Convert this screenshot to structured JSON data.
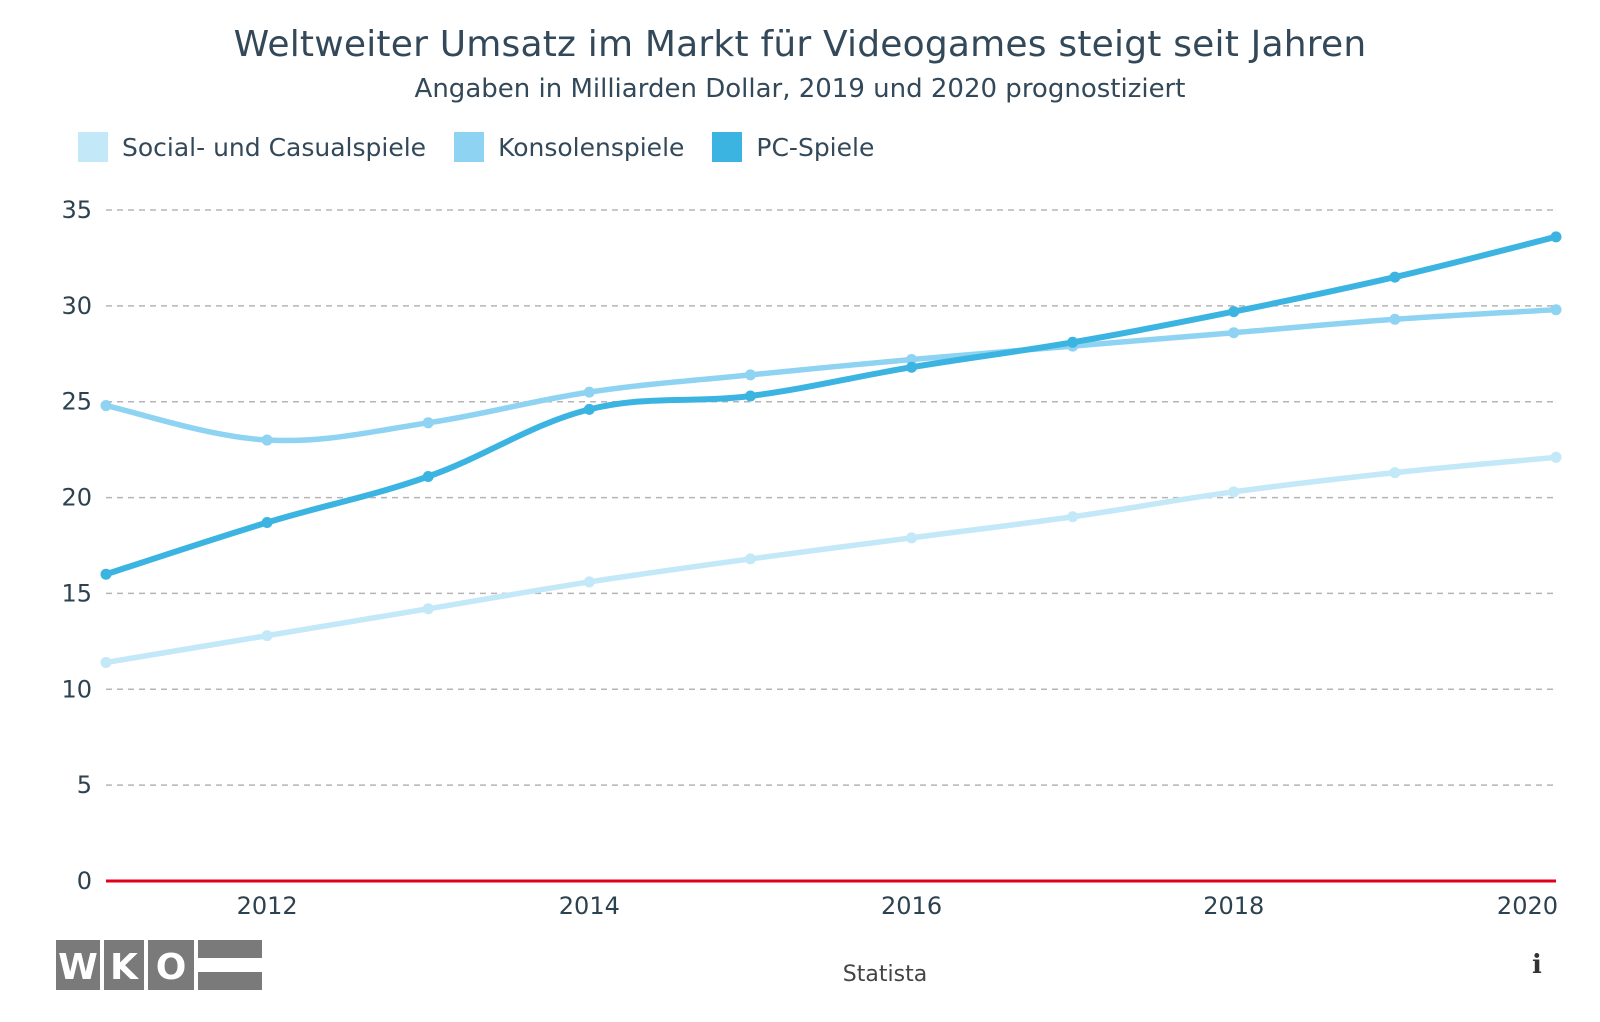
{
  "title": "Weltweiter Umsatz im Markt für Videogames steigt seit Jahren",
  "subtitle": "Angaben in Milliarden Dollar, 2019 und 2020 prognostiziert",
  "source": "Statista",
  "info_icon": "i",
  "logo_text": [
    "W",
    "K",
    "O"
  ],
  "colors": {
    "social": "#c3e8f8",
    "konsole": "#8fd3f2",
    "pc": "#3cb4e2",
    "grid": "#b5b5b5",
    "baseline": "#e0001b",
    "axis_text": "#2d4250"
  },
  "chart_data": {
    "type": "line",
    "x": [
      2011,
      2012,
      2013,
      2014,
      2015,
      2016,
      2017,
      2018,
      2019,
      2020
    ],
    "xticks": [
      "2012",
      "2014",
      "2016",
      "2018",
      "2020"
    ],
    "yticks": [
      "0",
      "5",
      "10",
      "15",
      "20",
      "25",
      "30",
      "35"
    ],
    "ylim": [
      0,
      35
    ],
    "grid": true,
    "legend_position": "top-left",
    "series": [
      {
        "name": "Social- und Casualspiele",
        "color_key": "social",
        "values": [
          11.4,
          12.8,
          14.2,
          15.6,
          16.8,
          17.9,
          19.0,
          20.3,
          21.3,
          22.1
        ]
      },
      {
        "name": "Konsolenspiele",
        "color_key": "konsole",
        "values": [
          24.8,
          23.0,
          23.9,
          25.5,
          26.4,
          27.2,
          27.9,
          28.6,
          29.3,
          29.8
        ]
      },
      {
        "name": "PC-Spiele",
        "color_key": "pc",
        "values": [
          16.0,
          18.7,
          21.1,
          24.6,
          25.3,
          26.8,
          28.1,
          29.7,
          31.5,
          33.6
        ]
      }
    ]
  }
}
